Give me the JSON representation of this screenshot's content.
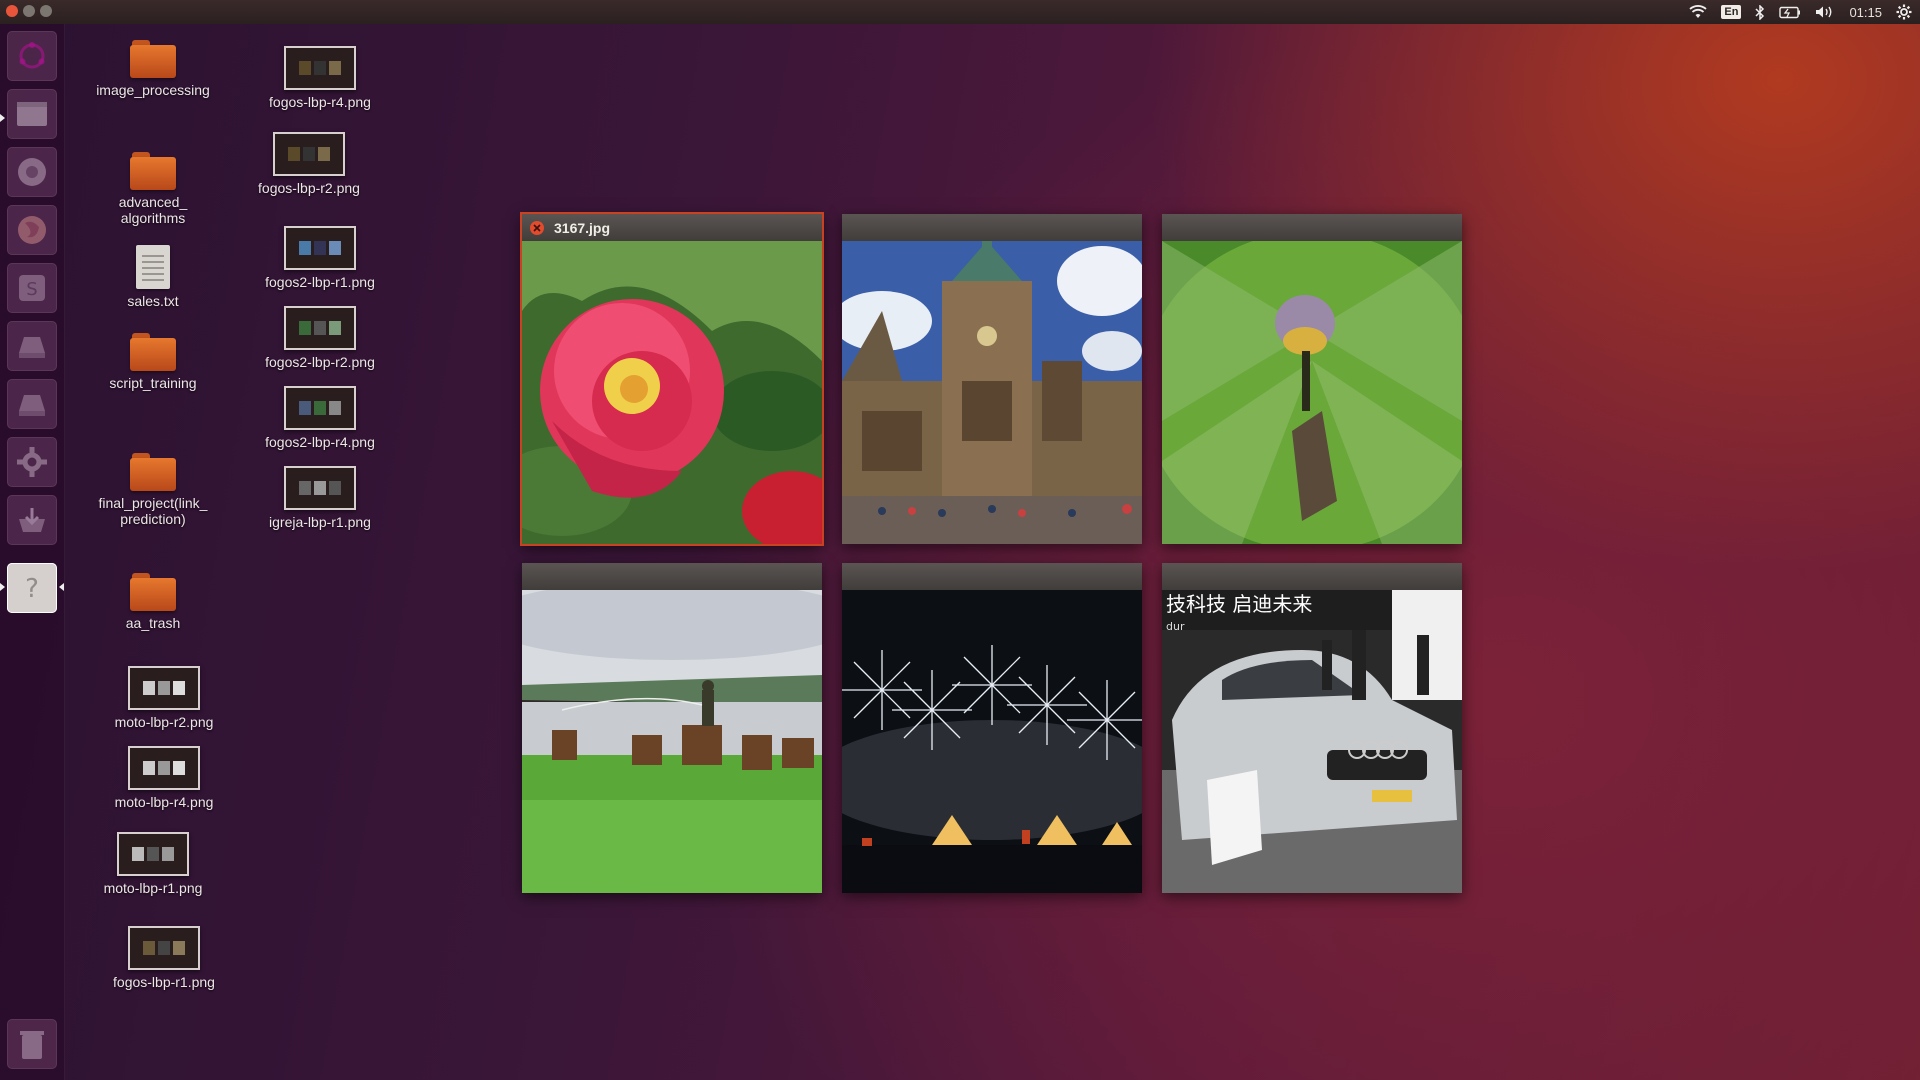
{
  "topbar": {
    "language": "En",
    "clock": "01:15"
  },
  "desktop": {
    "icons": [
      {
        "label": "image_processing",
        "type": "folder"
      },
      {
        "label": "advanced_\nalgorithms",
        "type": "folder"
      },
      {
        "label": "sales.txt",
        "type": "text"
      },
      {
        "label": "script_training",
        "type": "folder"
      },
      {
        "label": "final_project(link_\nprediction)",
        "type": "folder"
      },
      {
        "label": "aa_trash",
        "type": "folder"
      },
      {
        "label": "moto-lbp-r2.png",
        "type": "image"
      },
      {
        "label": "moto-lbp-r4.png",
        "type": "image"
      },
      {
        "label": "moto-lbp-r1.png",
        "type": "image"
      },
      {
        "label": "fogos-lbp-r1.png",
        "type": "image"
      },
      {
        "label": "fogos-lbp-r4.png",
        "type": "image"
      },
      {
        "label": "fogos-lbp-r2.png",
        "type": "image"
      },
      {
        "label": "fogos2-lbp-r1.png",
        "type": "image"
      },
      {
        "label": "fogos2-lbp-r2.png",
        "type": "image"
      },
      {
        "label": "fogos2-lbp-r4.png",
        "type": "image"
      },
      {
        "label": "igreja-lbp-r1.png",
        "type": "image"
      }
    ]
  },
  "spread": {
    "windows": [
      {
        "title": "3167.jpg",
        "active": true,
        "scene": "camellia-flower"
      },
      {
        "title": "",
        "active": false,
        "scene": "gothic-cathedral"
      },
      {
        "title": "",
        "active": false,
        "scene": "dragonfly"
      },
      {
        "title": "",
        "active": false,
        "scene": "horses-on-grassland"
      },
      {
        "title": "",
        "active": false,
        "scene": "fireworks-over-harbor"
      },
      {
        "title": "",
        "active": false,
        "scene": "silver-car-at-auto-show"
      }
    ],
    "car_banner_text": "技科技 启迪未来",
    "car_banner_sub": "dur"
  },
  "colors": {
    "accent": "#c94322",
    "close": "#e34b2d"
  }
}
